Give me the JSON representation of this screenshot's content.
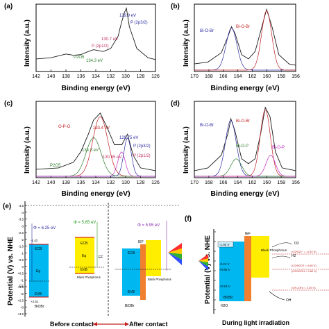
{
  "panels": {
    "a": {
      "letter": "(a)",
      "ylabel": "Intensity (a.u.)",
      "xlabel": "Binding energy (eV)",
      "xticks": [
        "142",
        "140",
        "138",
        "136",
        "134",
        "132",
        "130",
        "128",
        "126"
      ],
      "peak_labels": [
        {
          "text": "129.9 eV",
          "color": "#2a2aa0"
        },
        {
          "text": "P (2p3/2)",
          "color": "#2a2aa0"
        },
        {
          "text": "130.7 eV",
          "color": "#c03060"
        },
        {
          "text": "P (2p1/2)",
          "color": "#c03060"
        },
        {
          "text": "P2O5",
          "color": "#2a7a2a"
        },
        {
          "text": "134.3 eV",
          "color": "#2a7a2a"
        }
      ]
    },
    "b": {
      "letter": "(b)",
      "ylabel": "Intensity (a.u.)",
      "xlabel": "Binding energy (eV)",
      "xticks": [
        "170",
        "168",
        "166",
        "164",
        "162",
        "160",
        "158",
        "156"
      ],
      "peak_labels": [
        {
          "text": "Bi-O-Br",
          "color": "#2a2aa0"
        },
        {
          "text": "Bi-O-Br",
          "color": "#c02020"
        }
      ]
    },
    "c": {
      "letter": "(c)",
      "ylabel": "Intensity (a.u.)",
      "xlabel": "Binding energy (eV)",
      "xticks": [
        "142",
        "140",
        "138",
        "136",
        "134",
        "132",
        "130",
        "128",
        "126"
      ],
      "peak_labels": [
        {
          "text": "O-P-O",
          "color": "#c02020"
        },
        {
          "text": "133.4 eV",
          "color": "#c02020"
        },
        {
          "text": "129.75 eV",
          "color": "#2a2aa0"
        },
        {
          "text": "P (2p3/2)",
          "color": "#2a2aa0"
        },
        {
          "text": "134.3 eV",
          "color": "#2a7a2a"
        },
        {
          "text": "P2O5",
          "color": "#2a7a2a"
        },
        {
          "text": "130.55 eV",
          "color": "#c03060"
        },
        {
          "text": "P (2p1/2)",
          "color": "#c03060"
        }
      ]
    },
    "d": {
      "letter": "(d)",
      "ylabel": "Intensity (a.u.)",
      "xlabel": "Binding energy (eV)",
      "xticks": [
        "170",
        "168",
        "166",
        "164",
        "162",
        "160",
        "158",
        "156"
      ],
      "peak_labels": [
        {
          "text": "Bi-O-Br",
          "color": "#2a2aa0"
        },
        {
          "text": "Bi-O-Br",
          "color": "#c02020"
        },
        {
          "text": "Bi-O-P",
          "color": "#2a7a2a"
        },
        {
          "text": "Bi-O-P",
          "color": "#c020c0"
        }
      ]
    },
    "e": {
      "letter": "(e)",
      "ylabel": "Potential (V) vs. NHE",
      "yticks": [
        "-4.5",
        "-4",
        "-3.5",
        "-3",
        "-2.5",
        "-2",
        "-1.5",
        "-1",
        "-0.5",
        "0",
        "+0.5",
        "+1",
        "+1.5",
        "+2",
        "+2.5",
        "+3",
        "+3.5"
      ],
      "phi_bioi": "Φ = 6.25 eV",
      "phi_bp": "Φ = 5.65 eV",
      "phi_after": "Φ = 5.95 eV",
      "bioi_cb_val": "-1.42",
      "bioi_vb_val": "+2.51",
      "bp_cb_val": "-1.43",
      "bp_vb_val": "-0.23",
      "ecb": "ECB",
      "evb": "EVB",
      "ef": "EF",
      "eg": "Eg",
      "bioi_name": "BiOBr",
      "bp_name": "Black Phosphorus",
      "ief": "IEF",
      "caption_before": "Before contact",
      "caption_after": "After contact"
    },
    "f": {
      "letter": "(f)",
      "ylabel": "Potential (V) vs. NHE",
      "v_top": "-1.02 V",
      "v_m021": "-0.21 V",
      "v_066": "+0.66 V",
      "v_m253": "+2.53 V",
      "bp_name": "Black Phosphorus",
      "bioi_name": "BiOBr",
      "ief": "IEF",
      "o2": "O2",
      "h2": "H2",
      "h2o": "H2O",
      "oh": "OH",
      "ref1": "(O2/O2•− = -0.33 V)",
      "ref2": "(O2/H2O2 = 0.68 V)",
      "ref3": "(H2O2/OH = 0.82 V)",
      "ref4": "(OH-/OH• = 2.29 V)",
      "caption": "During light irradiation"
    }
  },
  "chart_data": [
    {
      "type": "line",
      "panel": "a",
      "xlabel": "Binding energy (eV)",
      "ylabel": "Intensity (a.u.)",
      "xlim": [
        142,
        126
      ],
      "series": [
        {
          "name": "",
          "x": [
            142,
            140,
            138,
            137,
            136,
            135,
            134.3,
            133,
            132,
            131,
            130.7,
            130.2,
            129.9,
            129.5,
            128.5,
            127,
            126
          ],
          "y": [
            0.18,
            0.2,
            0.26,
            0.24,
            0.25,
            0.3,
            0.33,
            0.3,
            0.35,
            0.55,
            0.7,
            0.92,
            1.0,
            0.7,
            0.35,
            0.2,
            0.17
          ]
        }
      ]
    },
    {
      "type": "line",
      "panel": "b",
      "xlabel": "Binding energy (eV)",
      "ylabel": "Intensity (a.u.)",
      "xlim": [
        170,
        155
      ],
      "series": [
        {
          "name": "",
          "x": [
            170,
            168,
            166,
            165,
            164.5,
            164,
            163,
            162,
            161,
            160,
            159.3,
            158.5,
            157.5,
            156,
            155
          ],
          "y": [
            0.1,
            0.13,
            0.28,
            0.55,
            0.7,
            0.6,
            0.25,
            0.18,
            0.3,
            0.7,
            0.98,
            0.7,
            0.25,
            0.1,
            0.08
          ]
        }
      ]
    },
    {
      "type": "line",
      "panel": "c",
      "xlabel": "Binding energy (eV)",
      "ylabel": "Intensity (a.u.)",
      "xlim": [
        142,
        126
      ],
      "series": [
        {
          "name": "",
          "x": [
            142,
            139,
            137,
            136,
            135,
            134.3,
            133.4,
            132.5,
            131.5,
            130.5,
            130,
            129.75,
            129,
            128,
            126
          ],
          "y": [
            0.1,
            0.12,
            0.2,
            0.35,
            0.6,
            0.8,
            0.9,
            0.7,
            0.45,
            0.45,
            0.55,
            0.6,
            0.3,
            0.12,
            0.08
          ]
        }
      ]
    },
    {
      "type": "line",
      "panel": "d",
      "xlabel": "Binding energy (eV)",
      "ylabel": "Intensity (a.u.)",
      "xlim": [
        170,
        155
      ],
      "series": [
        {
          "name": "",
          "x": [
            170,
            168,
            166,
            165,
            164.6,
            164,
            163,
            162,
            161,
            160.2,
            159.5,
            158.8,
            158,
            157,
            156,
            155
          ],
          "y": [
            0.08,
            0.12,
            0.3,
            0.62,
            0.82,
            0.65,
            0.25,
            0.18,
            0.25,
            0.6,
            0.98,
            0.85,
            0.35,
            0.12,
            0.1,
            0.08
          ]
        }
      ]
    }
  ]
}
